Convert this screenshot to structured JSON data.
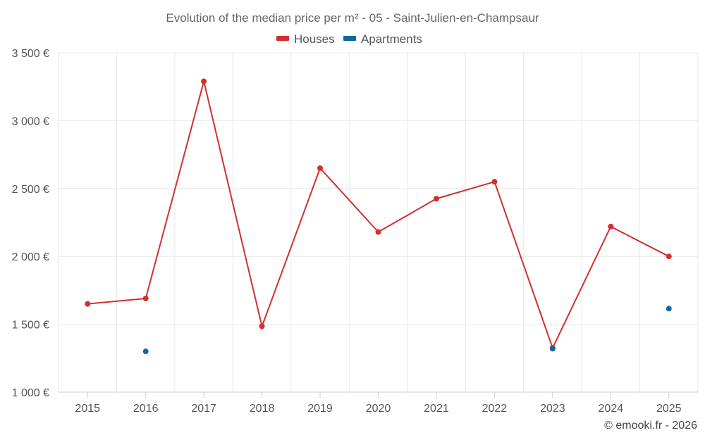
{
  "chart_data": {
    "type": "line",
    "title": "Evolution of the median price per m² - 05 - Saint-Julien-en-Champsaur",
    "categories": [
      "2015",
      "2016",
      "2017",
      "2018",
      "2019",
      "2020",
      "2021",
      "2022",
      "2023",
      "2024",
      "2025"
    ],
    "ylim": [
      1000,
      3500
    ],
    "yticks": [
      1000,
      1500,
      2000,
      2500,
      3000,
      3500
    ],
    "ytick_labels": [
      "1 000 €",
      "1 500 €",
      "2 000 €",
      "2 500 €",
      "3 000 €",
      "3 500 €"
    ],
    "grid": true,
    "legend_position": "top-center",
    "series": [
      {
        "name": "Houses",
        "color": "#d32f2f",
        "connect": true,
        "values": [
          1650,
          1690,
          3290,
          1485,
          2650,
          2180,
          2425,
          2550,
          1325,
          2220,
          2000
        ]
      },
      {
        "name": "Apartments",
        "color": "#0a6aa1",
        "connect": false,
        "values": [
          null,
          1300,
          null,
          null,
          null,
          null,
          null,
          null,
          1320,
          null,
          1615
        ]
      }
    ]
  },
  "footer": {
    "copyright": "© emooki.fr - 2026"
  }
}
